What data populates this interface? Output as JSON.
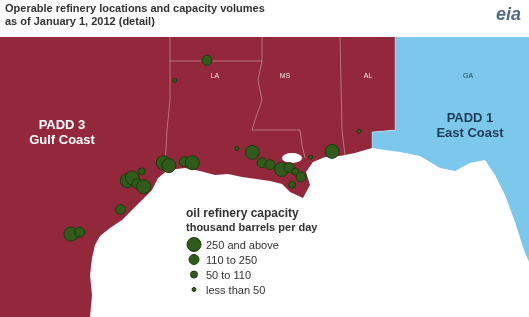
{
  "chart_data": {
    "type": "scatter",
    "title": [
      "Operable refinery locations and capacity volumes",
      "as of January 1, 2012 (detail)"
    ],
    "logo": "eia",
    "tick_labels": false,
    "grid": false,
    "xlim": [
      -99.55,
      -82.04
    ],
    "ylim": [
      25.48,
      34.8
    ],
    "legend": "bottom",
    "legend_title": "oil refinery capacity",
    "legend_subtitle": "thousand barrels per day",
    "capacity_classes": [
      "250 and above",
      "110 to 250",
      "50 to 110",
      "less than 50"
    ],
    "color": "#2f5b1b",
    "regions": [
      {
        "name": "PADD 3",
        "description": "Gulf Coast",
        "color": "#93283c"
      },
      {
        "name": "PADD 1",
        "description": "East Coast",
        "color": "#7cc8ec"
      }
    ],
    "state_labels": [
      "LA",
      "MS",
      "AL",
      "GA"
    ],
    "points": [
      {
        "lon": -92.76,
        "lat": 33.18,
        "capacity": "110 to 250"
      },
      {
        "lon": -93.86,
        "lat": 32.56,
        "capacity": "less than 50"
      },
      {
        "lon": -97.4,
        "lat": 27.8,
        "capacity": "250 and above"
      },
      {
        "lon": -97.1,
        "lat": 27.86,
        "capacity": "110 to 250"
      },
      {
        "lon": -95.71,
        "lat": 28.56,
        "capacity": "110 to 250"
      },
      {
        "lon": -95.48,
        "lat": 29.45,
        "capacity": "250 and above"
      },
      {
        "lon": -95.31,
        "lat": 29.54,
        "capacity": "250 and above"
      },
      {
        "lon": -95.15,
        "lat": 29.36,
        "capacity": "110 to 250"
      },
      {
        "lon": -94.98,
        "lat": 29.74,
        "capacity": "50 to 110"
      },
      {
        "lon": -94.92,
        "lat": 29.27,
        "capacity": "250 and above"
      },
      {
        "lon": -94.25,
        "lat": 30.01,
        "capacity": "250 and above"
      },
      {
        "lon": -94.06,
        "lat": 29.92,
        "capacity": "250 and above"
      },
      {
        "lon": -93.53,
        "lat": 30.04,
        "capacity": "110 to 250"
      },
      {
        "lon": -93.26,
        "lat": 30.01,
        "capacity": "250 and above"
      },
      {
        "lon": -91.74,
        "lat": 30.45,
        "capacity": "less than 50"
      },
      {
        "lon": -91.21,
        "lat": 30.33,
        "capacity": "250 and above"
      },
      {
        "lon": -90.88,
        "lat": 30.01,
        "capacity": "110 to 250"
      },
      {
        "lon": -90.61,
        "lat": 29.95,
        "capacity": "110 to 250"
      },
      {
        "lon": -90.21,
        "lat": 29.8,
        "capacity": "250 and above"
      },
      {
        "lon": -89.95,
        "lat": 29.86,
        "capacity": "110 to 250"
      },
      {
        "lon": -89.75,
        "lat": 29.74,
        "capacity": "50 to 110"
      },
      {
        "lon": -89.55,
        "lat": 29.57,
        "capacity": "110 to 250"
      },
      {
        "lon": -89.85,
        "lat": 29.33,
        "capacity": "50 to 110"
      },
      {
        "lon": -89.22,
        "lat": 30.18,
        "capacity": "less than 50"
      },
      {
        "lon": -88.49,
        "lat": 30.36,
        "capacity": "250 and above"
      },
      {
        "lon": -87.57,
        "lat": 30.98,
        "capacity": "less than 50"
      }
    ]
  }
}
